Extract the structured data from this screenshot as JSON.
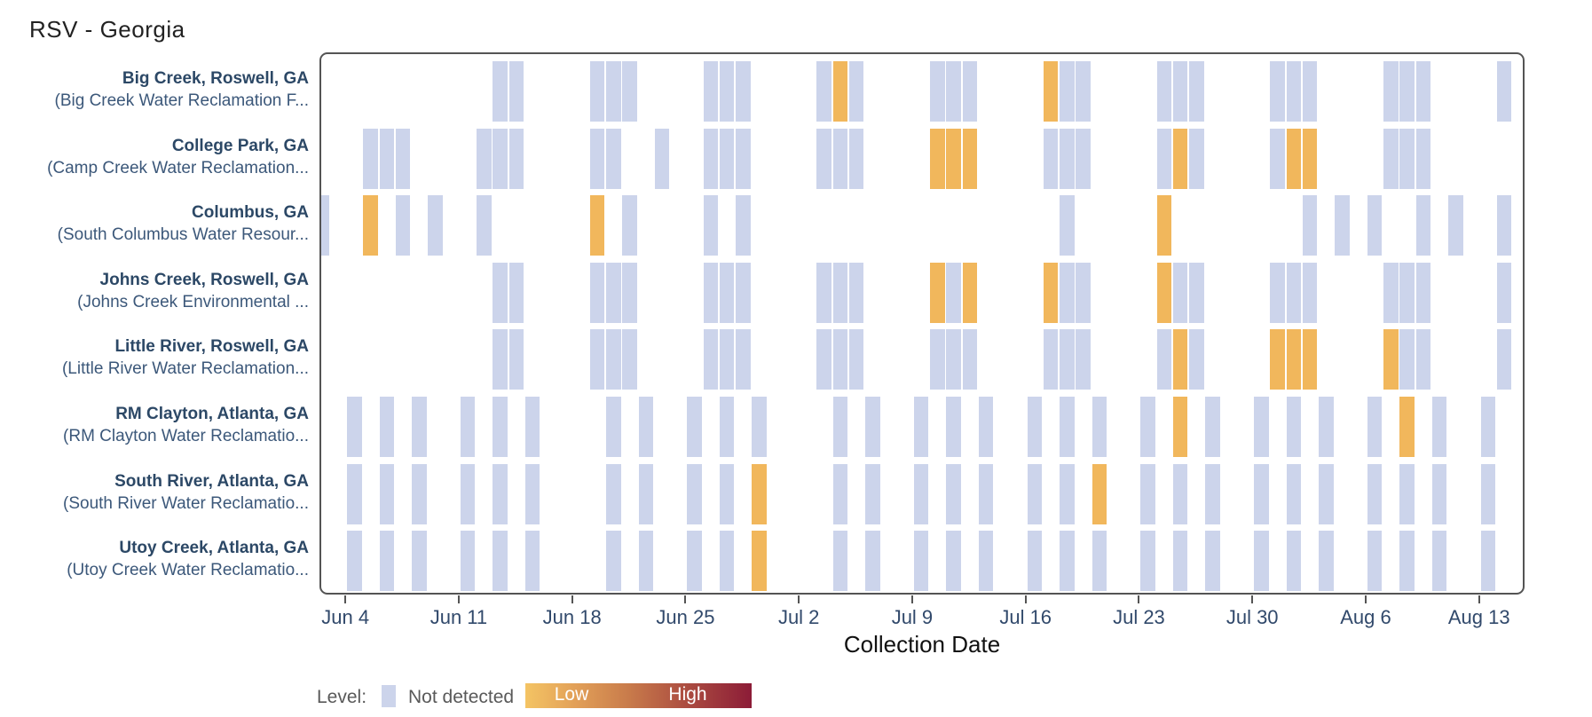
{
  "title": "RSV - Georgia",
  "x_axis_label": "Collection Date",
  "legend": {
    "label": "Level:",
    "not_detected": "Not detected",
    "low": "Low",
    "high": "High"
  },
  "colors": {
    "not_detected": "#ccd4eb",
    "low": "#f1b75c",
    "gradient_start": "#f4c464",
    "gradient_end": "#8c1c37",
    "site_label": "#2c4866",
    "tick_label": "#31496b",
    "plot_border": "#545454"
  },
  "chart_data": {
    "type": "heatmap",
    "title": "RSV - Georgia",
    "xlabel": "Collection Date",
    "x_ticks": [
      "Jun 4",
      "Jun 11",
      "Jun 18",
      "Jun 25",
      "Jul 2",
      "Jul 9",
      "Jul 16",
      "Jul 23",
      "Jul 30",
      "Aug 6",
      "Aug 13"
    ],
    "x_origin_date": "Jun 4",
    "tick_interval_days": 7,
    "legend_categories": [
      "Not detected",
      "Low",
      "High"
    ],
    "level_codes": {
      "0": "Not detected",
      "1": "Low"
    },
    "note_tile_encoding": "tiles are [day_offset_from_Jun_4, level_code]",
    "rows": [
      {
        "site": "Big Creek, Roswell, GA",
        "facility": "(Big Creek Water Reclamation F...",
        "tiles": [
          [
            9,
            0
          ],
          [
            10,
            0
          ],
          [
            15,
            0
          ],
          [
            16,
            0
          ],
          [
            17,
            0
          ],
          [
            22,
            0
          ],
          [
            23,
            0
          ],
          [
            24,
            0
          ],
          [
            29,
            0
          ],
          [
            30,
            1
          ],
          [
            31,
            0
          ],
          [
            36,
            0
          ],
          [
            37,
            0
          ],
          [
            38,
            0
          ],
          [
            43,
            1
          ],
          [
            44,
            0
          ],
          [
            45,
            0
          ],
          [
            50,
            0
          ],
          [
            51,
            0
          ],
          [
            52,
            0
          ],
          [
            57,
            0
          ],
          [
            58,
            0
          ],
          [
            59,
            0
          ],
          [
            64,
            0
          ],
          [
            65,
            0
          ],
          [
            66,
            0
          ],
          [
            71,
            0
          ]
        ]
      },
      {
        "site": "College Park, GA",
        "facility": "(Camp Creek Water Reclamation...",
        "tiles": [
          [
            1,
            0
          ],
          [
            2,
            0
          ],
          [
            3,
            0
          ],
          [
            8,
            0
          ],
          [
            9,
            0
          ],
          [
            10,
            0
          ],
          [
            15,
            0
          ],
          [
            16,
            0
          ],
          [
            19,
            0
          ],
          [
            22,
            0
          ],
          [
            23,
            0
          ],
          [
            24,
            0
          ],
          [
            29,
            0
          ],
          [
            30,
            0
          ],
          [
            31,
            0
          ],
          [
            36,
            1
          ],
          [
            37,
            1
          ],
          [
            38,
            1
          ],
          [
            43,
            0
          ],
          [
            44,
            0
          ],
          [
            45,
            0
          ],
          [
            50,
            0
          ],
          [
            51,
            1
          ],
          [
            52,
            0
          ],
          [
            57,
            0
          ],
          [
            58,
            1
          ],
          [
            59,
            1
          ],
          [
            64,
            0
          ],
          [
            65,
            0
          ],
          [
            66,
            0
          ]
        ]
      },
      {
        "site": "Columbus, GA",
        "facility": "(South Columbus Water Resour...",
        "tiles": [
          [
            -2,
            0
          ],
          [
            1,
            1
          ],
          [
            3,
            0
          ],
          [
            5,
            0
          ],
          [
            8,
            0
          ],
          [
            15,
            1
          ],
          [
            17,
            0
          ],
          [
            22,
            0
          ],
          [
            24,
            0
          ],
          [
            44,
            0
          ],
          [
            50,
            1
          ],
          [
            59,
            0
          ],
          [
            61,
            0
          ],
          [
            63,
            0
          ],
          [
            66,
            0
          ],
          [
            68,
            0
          ],
          [
            71,
            0
          ]
        ]
      },
      {
        "site": "Johns Creek, Roswell, GA",
        "facility": "(Johns Creek Environmental ...",
        "tiles": [
          [
            9,
            0
          ],
          [
            10,
            0
          ],
          [
            15,
            0
          ],
          [
            16,
            0
          ],
          [
            17,
            0
          ],
          [
            22,
            0
          ],
          [
            23,
            0
          ],
          [
            24,
            0
          ],
          [
            29,
            0
          ],
          [
            30,
            0
          ],
          [
            31,
            0
          ],
          [
            36,
            1
          ],
          [
            37,
            0
          ],
          [
            38,
            1
          ],
          [
            43,
            1
          ],
          [
            44,
            0
          ],
          [
            45,
            0
          ],
          [
            50,
            1
          ],
          [
            51,
            0
          ],
          [
            52,
            0
          ],
          [
            57,
            0
          ],
          [
            58,
            0
          ],
          [
            59,
            0
          ],
          [
            64,
            0
          ],
          [
            65,
            0
          ],
          [
            66,
            0
          ],
          [
            71,
            0
          ]
        ]
      },
      {
        "site": "Little River, Roswell, GA",
        "facility": "(Little River Water Reclamation...",
        "tiles": [
          [
            9,
            0
          ],
          [
            10,
            0
          ],
          [
            15,
            0
          ],
          [
            16,
            0
          ],
          [
            17,
            0
          ],
          [
            22,
            0
          ],
          [
            23,
            0
          ],
          [
            24,
            0
          ],
          [
            29,
            0
          ],
          [
            30,
            0
          ],
          [
            31,
            0
          ],
          [
            36,
            0
          ],
          [
            37,
            0
          ],
          [
            38,
            0
          ],
          [
            43,
            0
          ],
          [
            44,
            0
          ],
          [
            45,
            0
          ],
          [
            50,
            0
          ],
          [
            51,
            1
          ],
          [
            52,
            0
          ],
          [
            57,
            1
          ],
          [
            58,
            1
          ],
          [
            59,
            1
          ],
          [
            64,
            1
          ],
          [
            65,
            0
          ],
          [
            66,
            0
          ],
          [
            71,
            0
          ]
        ]
      },
      {
        "site": "RM Clayton, Atlanta, GA",
        "facility": "(RM Clayton Water Reclamatio...",
        "tiles": [
          [
            0,
            0
          ],
          [
            2,
            0
          ],
          [
            4,
            0
          ],
          [
            7,
            0
          ],
          [
            9,
            0
          ],
          [
            11,
            0
          ],
          [
            16,
            0
          ],
          [
            18,
            0
          ],
          [
            21,
            0
          ],
          [
            23,
            0
          ],
          [
            25,
            0
          ],
          [
            30,
            0
          ],
          [
            32,
            0
          ],
          [
            35,
            0
          ],
          [
            37,
            0
          ],
          [
            39,
            0
          ],
          [
            42,
            0
          ],
          [
            44,
            0
          ],
          [
            46,
            0
          ],
          [
            49,
            0
          ],
          [
            51,
            1
          ],
          [
            53,
            0
          ],
          [
            56,
            0
          ],
          [
            58,
            0
          ],
          [
            60,
            0
          ],
          [
            63,
            0
          ],
          [
            65,
            1
          ],
          [
            67,
            0
          ],
          [
            70,
            0
          ]
        ]
      },
      {
        "site": "South River, Atlanta, GA",
        "facility": "(South River Water Reclamatio...",
        "tiles": [
          [
            0,
            0
          ],
          [
            2,
            0
          ],
          [
            4,
            0
          ],
          [
            7,
            0
          ],
          [
            9,
            0
          ],
          [
            11,
            0
          ],
          [
            16,
            0
          ],
          [
            18,
            0
          ],
          [
            21,
            0
          ],
          [
            23,
            0
          ],
          [
            25,
            1
          ],
          [
            30,
            0
          ],
          [
            32,
            0
          ],
          [
            35,
            0
          ],
          [
            37,
            0
          ],
          [
            39,
            0
          ],
          [
            42,
            0
          ],
          [
            44,
            0
          ],
          [
            46,
            1
          ],
          [
            49,
            0
          ],
          [
            51,
            0
          ],
          [
            53,
            0
          ],
          [
            56,
            0
          ],
          [
            58,
            0
          ],
          [
            60,
            0
          ],
          [
            63,
            0
          ],
          [
            65,
            0
          ],
          [
            67,
            0
          ],
          [
            70,
            0
          ]
        ]
      },
      {
        "site": "Utoy Creek, Atlanta, GA",
        "facility": "(Utoy Creek Water Reclamatio...",
        "tiles": [
          [
            0,
            0
          ],
          [
            2,
            0
          ],
          [
            4,
            0
          ],
          [
            7,
            0
          ],
          [
            9,
            0
          ],
          [
            11,
            0
          ],
          [
            16,
            0
          ],
          [
            18,
            0
          ],
          [
            21,
            0
          ],
          [
            23,
            0
          ],
          [
            25,
            1
          ],
          [
            30,
            0
          ],
          [
            32,
            0
          ],
          [
            35,
            0
          ],
          [
            37,
            0
          ],
          [
            39,
            0
          ],
          [
            42,
            0
          ],
          [
            44,
            0
          ],
          [
            46,
            0
          ],
          [
            49,
            0
          ],
          [
            51,
            0
          ],
          [
            53,
            0
          ],
          [
            56,
            0
          ],
          [
            58,
            0
          ],
          [
            60,
            0
          ],
          [
            63,
            0
          ],
          [
            65,
            0
          ],
          [
            67,
            0
          ],
          [
            70,
            0
          ]
        ]
      }
    ]
  }
}
